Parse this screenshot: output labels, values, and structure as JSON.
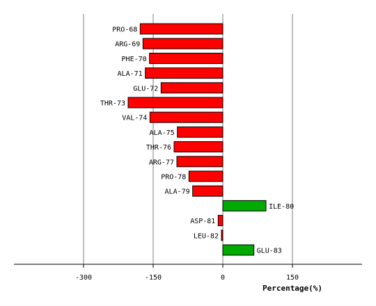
{
  "chart_data": {
    "type": "bar",
    "orientation": "horizontal",
    "categories": [
      "PRO-68",
      "ARG-69",
      "PHE-70",
      "ALA-71",
      "GLU-72",
      "THR-73",
      "VAL-74",
      "ALA-75",
      "THR-76",
      "ARG-77",
      "PRO-78",
      "ALA-79",
      "ILE-80",
      "ASP-81",
      "LEU-82",
      "GLU-83"
    ],
    "values": [
      -178,
      -172,
      -158,
      -167,
      -133,
      -204,
      -157,
      -98,
      -105,
      -99,
      -73,
      -65,
      93,
      -10,
      -3,
      67
    ],
    "xlabel": "Percentage(%)",
    "ylabel": "",
    "title": "",
    "xlim": [
      -450,
      300
    ],
    "xticks": [
      -300,
      -150,
      0,
      150
    ],
    "xtick_labels": [
      "-300",
      "-150",
      "0",
      "150"
    ],
    "grid": true,
    "colors": {
      "negative": "#ff0000",
      "positive": "#00aa00",
      "outline": "#000000",
      "grid": "#808080"
    }
  }
}
